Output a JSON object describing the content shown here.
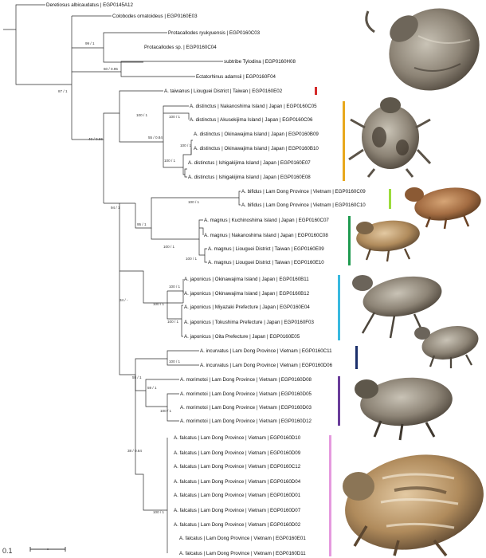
{
  "tips": [
    {
      "id": "t1",
      "label": "Deretiosus albicaudatus | EGP0145A12"
    },
    {
      "id": "t2",
      "label": "Colobodes ornatoideus | EGP0160E03"
    },
    {
      "id": "t3",
      "label": "Protacallodes ryukyuensis | EGP0160C03"
    },
    {
      "id": "t4",
      "label": "Protacallodes sp. | EGP0160C04"
    },
    {
      "id": "t5",
      "label": "subtribe Tylodina | EGP0160H08"
    },
    {
      "id": "t6",
      "label": "Ectatorhinus adamsii | EGP0160F04"
    },
    {
      "id": "t7",
      "label": "A. taiwanus | Liouguei District | Taiwan | EGP0160E02"
    },
    {
      "id": "t8",
      "label": "A. distinctus | Nakanoshima Island | Japan | EGP0160C05"
    },
    {
      "id": "t9",
      "label": "A. distinctus | Akusekijima Island | Japan | EGP0160C06"
    },
    {
      "id": "t10",
      "label": "A. distinctus | Okinawajima Island | Japan | EGP0160B09"
    },
    {
      "id": "t11",
      "label": "A. distinctus | Okinawajima Island | Japan | EGP0160B10"
    },
    {
      "id": "t12",
      "label": "A. distinctus | Ishigakijima Island | Japan | EGP0160E07"
    },
    {
      "id": "t13",
      "label": "A. distinctus | Ishigakijima Island | Japan | EGP0160E08"
    },
    {
      "id": "t14",
      "label": "A. bifidus | Lam Dong Province | Vietnam | EGP0160C09"
    },
    {
      "id": "t15",
      "label": "A. bifidus | Lam Dong Province | Vietnam | EGP0160C10"
    },
    {
      "id": "t16",
      "label": "A. magnus | Kuchinoshima Island | Japan | EGP0160C07"
    },
    {
      "id": "t17",
      "label": "A. magnus | Nakanoshima Island | Japan | EGP0160C08"
    },
    {
      "id": "t18",
      "label": "A. magnus | Liouguei District | Taiwan | EGP0160E09"
    },
    {
      "id": "t19",
      "label": "A. magnus | Liouguei District | Taiwan | EGP0160E10"
    },
    {
      "id": "t20",
      "label": "A. japonicus | Okinawajima Island | Japan | EGP0160B11"
    },
    {
      "id": "t21",
      "label": "A. japonicus | Okinawajima Island | Japan | EGP0160B12"
    },
    {
      "id": "t22",
      "label": "A. japonicus | Miyazaki Prefecture | Japan | EGP0160E04"
    },
    {
      "id": "t23",
      "label": "A. japonicus | Tokushima Prefecture | Japan | EGP0160F03"
    },
    {
      "id": "t24",
      "label": "A. japonicus | Oita Prefecture | Japan | EGP0160E05"
    },
    {
      "id": "t25",
      "label": "A. incurvatus | Lam Dong Province | Vietnam | EGP0160C11"
    },
    {
      "id": "t26",
      "label": "A. incurvatus | Lam Dong Province | Vietnam | EGP0160D06"
    },
    {
      "id": "t27",
      "label": "A. morimotoi | Lam Dong Province | Vietnam | EGP0160D08"
    },
    {
      "id": "t28",
      "label": "A. morimotoi | Lam Dong Province | Vietnam | EGP0160D05"
    },
    {
      "id": "t29",
      "label": "A. morimotoi | Lam Dong Province | Vietnam | EGP0160D03"
    },
    {
      "id": "t30",
      "label": "A. morimotoi | Lam Dong Province | Vietnam | EGP0160D12"
    },
    {
      "id": "t31",
      "label": "A. falcatus | Lam Dong Province | Vietnam | EGP0160D10"
    },
    {
      "id": "t32",
      "label": "A. falcatus | Lam Dong Province | Vietnam | EGP0160D09"
    },
    {
      "id": "t33",
      "label": "A. falcatus | Lam Dong Province | Vietnam | EGP0160C12"
    },
    {
      "id": "t34",
      "label": "A. falcatus | Lam Dong Province | Vietnam | EGP0160D04"
    },
    {
      "id": "t35",
      "label": "A. falcatus | Lam Dong Province | Vietnam | EGP0160D01"
    },
    {
      "id": "t36",
      "label": "A. falcatus | Lam Dong Province | Vietnam | EGP0160D07"
    },
    {
      "id": "t37",
      "label": "A. falcatus | Lam Dong Province | Vietnam | EGP0160D02"
    },
    {
      "id": "t38",
      "label": "A. falcatus | Lam Dong Province | Vietnam | EGP0160E01"
    },
    {
      "id": "t39",
      "label": "A. falcatus | Lam Dong Province | Vietnam | EGP0160D11"
    }
  ],
  "support_values": [
    {
      "id": "s1",
      "label": "99 / 1"
    },
    {
      "id": "s2",
      "label": "60 / 0.95"
    },
    {
      "id": "s3",
      "label": "87 / 1"
    },
    {
      "id": "s4",
      "label": "40 / 0.66"
    },
    {
      "id": "s5",
      "label": "100 / 1"
    },
    {
      "id": "s6",
      "label": "55 / 0.84"
    },
    {
      "id": "s7",
      "label": "100 / 1"
    },
    {
      "id": "s8",
      "label": "100 / 1"
    },
    {
      "id": "s9",
      "label": "100 / 1"
    },
    {
      "id": "s10",
      "label": "94 / 1"
    },
    {
      "id": "s11",
      "label": "100 / 1"
    },
    {
      "id": "s12",
      "label": "95 / 1"
    },
    {
      "id": "s13",
      "label": "100 / 1"
    },
    {
      "id": "s14",
      "label": "100 / 1"
    },
    {
      "id": "s15",
      "label": "34 / -"
    },
    {
      "id": "s16",
      "label": "100 / 1"
    },
    {
      "id": "s17",
      "label": "100 / 1"
    },
    {
      "id": "s18",
      "label": "100 / 1"
    },
    {
      "id": "s19",
      "label": "55 / 1"
    },
    {
      "id": "s20",
      "label": "100 / 1"
    },
    {
      "id": "s21",
      "label": "59 / 1"
    },
    {
      "id": "s22",
      "label": "100 / 1"
    },
    {
      "id": "s23",
      "label": "38 / 0.64"
    },
    {
      "id": "s24",
      "label": "100 / 1"
    }
  ],
  "clade_bars": [
    {
      "id": "b1",
      "color": "#d42a2a"
    },
    {
      "id": "b2",
      "color": "#e8a81c"
    },
    {
      "id": "b3",
      "color": "#9bdc3c"
    },
    {
      "id": "b4",
      "color": "#1f9a4f"
    },
    {
      "id": "b5",
      "color": "#39b9df"
    },
    {
      "id": "b6",
      "color": "#1b2f6b"
    },
    {
      "id": "b7",
      "color": "#6a3d9a"
    },
    {
      "id": "b8",
      "color": "#e59ade"
    }
  ],
  "scale_bar": {
    "label": "0.1"
  },
  "specimen_photos": [
    {
      "id": "p1",
      "icon": "weevil-photo-icon"
    },
    {
      "id": "p2",
      "icon": "weevil-photo-icon"
    },
    {
      "id": "p3",
      "icon": "weevil-photo-icon"
    },
    {
      "id": "p4",
      "icon": "weevil-photo-icon"
    },
    {
      "id": "p5",
      "icon": "weevil-photo-icon"
    },
    {
      "id": "p6",
      "icon": "weevil-photo-icon"
    },
    {
      "id": "p7",
      "icon": "weevil-photo-icon"
    },
    {
      "id": "p8",
      "icon": "weevil-photo-icon"
    }
  ]
}
